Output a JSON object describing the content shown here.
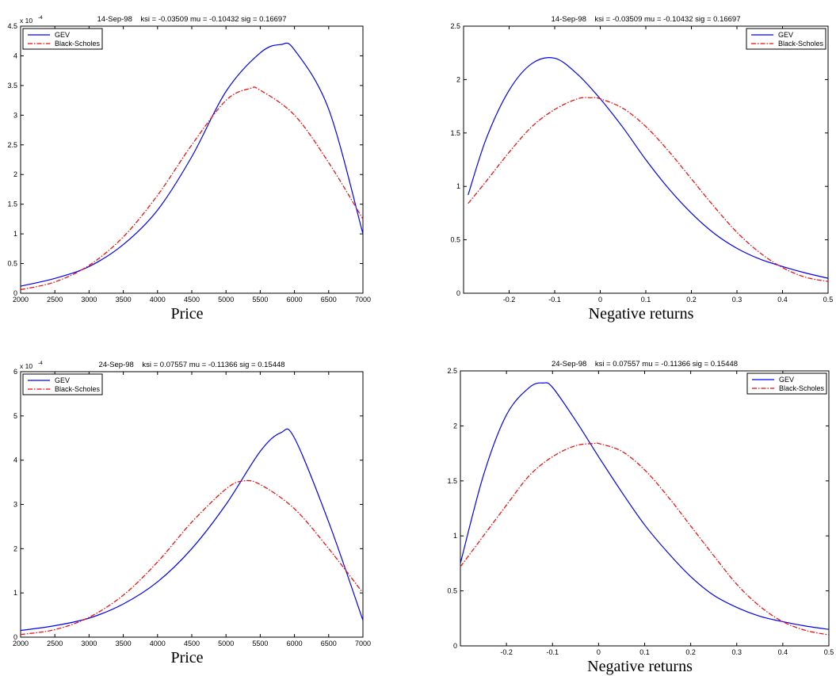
{
  "chart_data": [
    {
      "type": "line",
      "title": "14-Sep-98    ksi = -0.03509 mu = -0.10432 sig = 0.16697",
      "xlabel": "Price",
      "ylabel": "",
      "xlim": [
        2000,
        7000
      ],
      "ylim": [
        0,
        4.5
      ],
      "y_exponent": "x 10",
      "y_exponent_power": "-4",
      "xticks": [
        "2000",
        "2500",
        "3000",
        "3500",
        "4000",
        "4500",
        "5000",
        "5500",
        "6000",
        "6500",
        "7000"
      ],
      "yticks": [
        "0",
        "0.5",
        "1",
        "1.5",
        "2",
        "2.5",
        "3",
        "3.5",
        "4",
        "4.5"
      ],
      "legend_position": "top-left",
      "grid": false,
      "series": [
        {
          "name": "GEV",
          "color": "#0000ff",
          "style": "solid",
          "x": [
            2000,
            2500,
            3000,
            3500,
            4000,
            4500,
            5000,
            5500,
            5800,
            6000,
            6500,
            7000
          ],
          "y": [
            0.12,
            0.25,
            0.45,
            0.82,
            1.4,
            2.3,
            3.4,
            4.05,
            4.19,
            4.1,
            3.1,
            1.0
          ]
        },
        {
          "name": "Black-Scholes",
          "color": "#ff0000",
          "style": "dashdot",
          "x": [
            2000,
            2500,
            3000,
            3500,
            4000,
            4500,
            5000,
            5350,
            5500,
            6000,
            6500,
            7000
          ],
          "y": [
            0.06,
            0.19,
            0.47,
            0.95,
            1.65,
            2.5,
            3.25,
            3.45,
            3.42,
            3.0,
            2.2,
            1.25
          ]
        }
      ]
    },
    {
      "type": "line",
      "title": "14-Sep-98    ksi = -0.03509 mu = -0.10432 sig = 0.16697",
      "xlabel": "Negative returns",
      "ylabel": "",
      "xlim": [
        -0.3,
        0.5
      ],
      "ylim": [
        0,
        2.5
      ],
      "xticks": [
        "-0.2",
        "-0.1",
        "0",
        "0.1",
        "0.2",
        "0.3",
        "0.4",
        "0.5"
      ],
      "yticks": [
        "0",
        "0.5",
        "1",
        "1.5",
        "2",
        "2.5"
      ],
      "legend_position": "top-right",
      "grid": false,
      "series": [
        {
          "name": "GEV",
          "color": "#0000ff",
          "style": "solid",
          "x": [
            -0.29,
            -0.25,
            -0.2,
            -0.15,
            -0.1,
            -0.05,
            0,
            0.05,
            0.1,
            0.15,
            0.2,
            0.25,
            0.3,
            0.35,
            0.4,
            0.45,
            0.5
          ],
          "y": [
            0.92,
            1.45,
            1.9,
            2.15,
            2.2,
            2.05,
            1.82,
            1.55,
            1.25,
            0.98,
            0.75,
            0.56,
            0.42,
            0.32,
            0.25,
            0.19,
            0.14
          ]
        },
        {
          "name": "Black-Scholes",
          "color": "#ff0000",
          "style": "dashdot",
          "x": [
            -0.29,
            -0.25,
            -0.2,
            -0.15,
            -0.1,
            -0.05,
            -0.02,
            0,
            0.05,
            0.1,
            0.15,
            0.2,
            0.25,
            0.3,
            0.35,
            0.4,
            0.45,
            0.5
          ],
          "y": [
            0.84,
            1.05,
            1.32,
            1.56,
            1.72,
            1.82,
            1.83,
            1.82,
            1.73,
            1.56,
            1.33,
            1.07,
            0.81,
            0.57,
            0.38,
            0.24,
            0.15,
            0.11
          ]
        }
      ]
    },
    {
      "type": "line",
      "title": "24-Sep-98    ksi = 0.07557 mu = -0.11366 sig = 0.15448",
      "xlabel": "Price",
      "ylabel": "",
      "xlim": [
        2000,
        7000
      ],
      "ylim": [
        0,
        6
      ],
      "y_exponent": "x 10",
      "y_exponent_power": "-4",
      "xticks": [
        "2000",
        "2500",
        "3000",
        "3500",
        "4000",
        "4500",
        "5000",
        "5500",
        "6000",
        "6500",
        "7000"
      ],
      "yticks": [
        "0",
        "1",
        "2",
        "3",
        "4",
        "5",
        "6"
      ],
      "legend_position": "top-left",
      "grid": false,
      "series": [
        {
          "name": "GEV",
          "color": "#0000ff",
          "style": "solid",
          "x": [
            2000,
            2500,
            3000,
            3500,
            4000,
            4500,
            5000,
            5500,
            5800,
            6000,
            6500,
            7000
          ],
          "y": [
            0.15,
            0.26,
            0.43,
            0.75,
            1.25,
            2.0,
            3.0,
            4.2,
            4.62,
            4.5,
            2.6,
            0.38
          ]
        },
        {
          "name": "Black-Scholes",
          "color": "#ff0000",
          "style": "dashdot",
          "x": [
            2000,
            2500,
            3000,
            3500,
            4000,
            4500,
            5000,
            5250,
            5500,
            6000,
            6500,
            7000
          ],
          "y": [
            0.06,
            0.17,
            0.45,
            0.95,
            1.7,
            2.6,
            3.35,
            3.53,
            3.45,
            2.9,
            2.0,
            1.0
          ]
        }
      ]
    },
    {
      "type": "line",
      "title": "24-Sep-98    ksi = 0.07557 mu = -0.11366 sig = 0.15448",
      "xlabel": "Negative returns",
      "ylabel": "",
      "xlim": [
        -0.3,
        0.5
      ],
      "ylim": [
        0,
        2.5
      ],
      "xticks": [
        "-0.2",
        "-0.1",
        "0",
        "0.1",
        "0.2",
        "0.3",
        "0.4",
        "0.5"
      ],
      "yticks": [
        "0",
        "0.5",
        "1",
        "1.5",
        "2",
        "2.5"
      ],
      "legend_position": "top-right",
      "grid": false,
      "series": [
        {
          "name": "GEV",
          "color": "#0000ff",
          "style": "solid",
          "x": [
            -0.3,
            -0.25,
            -0.2,
            -0.15,
            -0.12,
            -0.1,
            -0.05,
            0,
            0.05,
            0.1,
            0.15,
            0.2,
            0.25,
            0.3,
            0.35,
            0.4,
            0.45,
            0.5
          ],
          "y": [
            0.75,
            1.55,
            2.1,
            2.35,
            2.39,
            2.35,
            2.05,
            1.72,
            1.4,
            1.1,
            0.85,
            0.63,
            0.46,
            0.35,
            0.27,
            0.22,
            0.18,
            0.15
          ]
        },
        {
          "name": "Black-Scholes",
          "color": "#ff0000",
          "style": "dashdot",
          "x": [
            -0.3,
            -0.25,
            -0.2,
            -0.15,
            -0.1,
            -0.05,
            -0.01,
            0,
            0.05,
            0.1,
            0.15,
            0.2,
            0.25,
            0.3,
            0.35,
            0.4,
            0.45,
            0.5
          ],
          "y": [
            0.72,
            1.0,
            1.28,
            1.55,
            1.72,
            1.82,
            1.84,
            1.84,
            1.77,
            1.6,
            1.36,
            1.09,
            0.82,
            0.56,
            0.36,
            0.22,
            0.14,
            0.1
          ]
        }
      ]
    }
  ]
}
